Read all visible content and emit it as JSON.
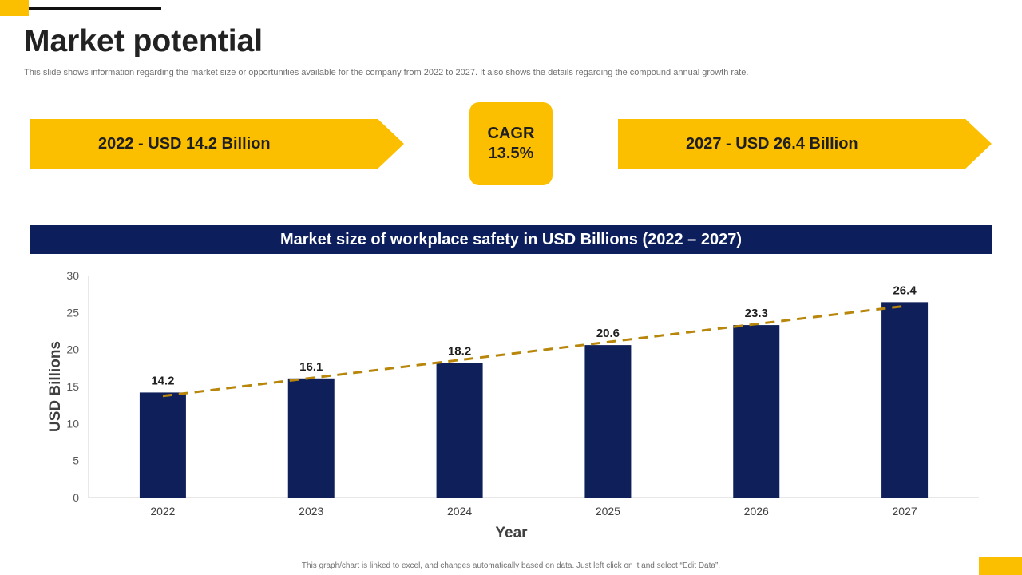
{
  "slide": {
    "title": "Market potential",
    "subtitle": "This slide shows information regarding the market size or opportunities available for the company from 2022 to 2027. It also shows the details regarding the compound annual growth rate.",
    "footnote": "This graph/chart is linked to excel, and changes automatically based on data. Just left click on it and select “Edit Data”."
  },
  "highlights": {
    "start": "2022 - USD 14.2 Billion",
    "end": "2027 - USD 26.4 Billion",
    "cagr_label": "CAGR",
    "cagr_value": "13.5%"
  },
  "colors": {
    "accent": "#fbbf00",
    "navy": "#0c1f5c",
    "bar": "#0f1f5a",
    "trend": "#b8860b"
  },
  "chart_data": {
    "type": "bar",
    "title": "Market size of workplace safety in USD Billions (2022 – 2027)",
    "categories": [
      "2022",
      "2023",
      "2024",
      "2025",
      "2026",
      "2027"
    ],
    "values": [
      14.2,
      16.1,
      18.2,
      20.6,
      23.3,
      26.4
    ],
    "data_labels": [
      "14.2",
      "16.1",
      "18.2",
      "20.6",
      "23.3",
      "26.4"
    ],
    "xlabel": "Year",
    "ylabel": "USD Billions",
    "ylim": [
      0,
      30
    ],
    "yticks": [
      "0",
      "5",
      "10",
      "15",
      "20",
      "25",
      "30"
    ],
    "trendline": "linear, dashed",
    "grid": false
  }
}
